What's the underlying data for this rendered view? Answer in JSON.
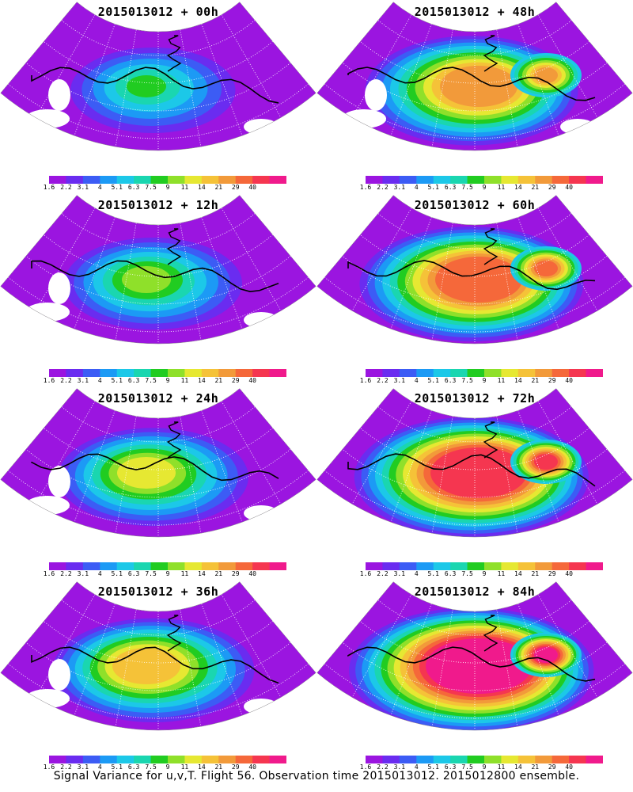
{
  "panels": [
    {
      "title": "2015013012 + 00h",
      "level": 0
    },
    {
      "title": "2015013012 + 48h",
      "level": 4
    },
    {
      "title": "2015013012 + 12h",
      "level": 1
    },
    {
      "title": "2015013012 + 60h",
      "level": 5
    },
    {
      "title": "2015013012 + 24h",
      "level": 2
    },
    {
      "title": "2015013012 + 72h",
      "level": 6
    },
    {
      "title": "2015013012 + 36h",
      "level": 3
    },
    {
      "title": "2015013012 + 84h",
      "level": 7
    }
  ],
  "colorbar": {
    "labels": [
      "1.6",
      "2.2",
      "3.1",
      "4",
      "5.1",
      "6.3",
      "7.5",
      "9",
      "11",
      "14",
      "21",
      "29",
      "40"
    ],
    "colors": [
      "#9b15e0",
      "#6a2cf0",
      "#3c5cf5",
      "#1c9af5",
      "#1cc8e8",
      "#1ad6b0",
      "#21cc21",
      "#8fe02a",
      "#e6e832",
      "#f5c238",
      "#f29a3a",
      "#f5683a",
      "#f53650",
      "#f01a8c"
    ]
  },
  "footer": "Signal Variance for u,v,T. Flight 56. Observation time 2015013012. 2015012800 ensemble."
}
